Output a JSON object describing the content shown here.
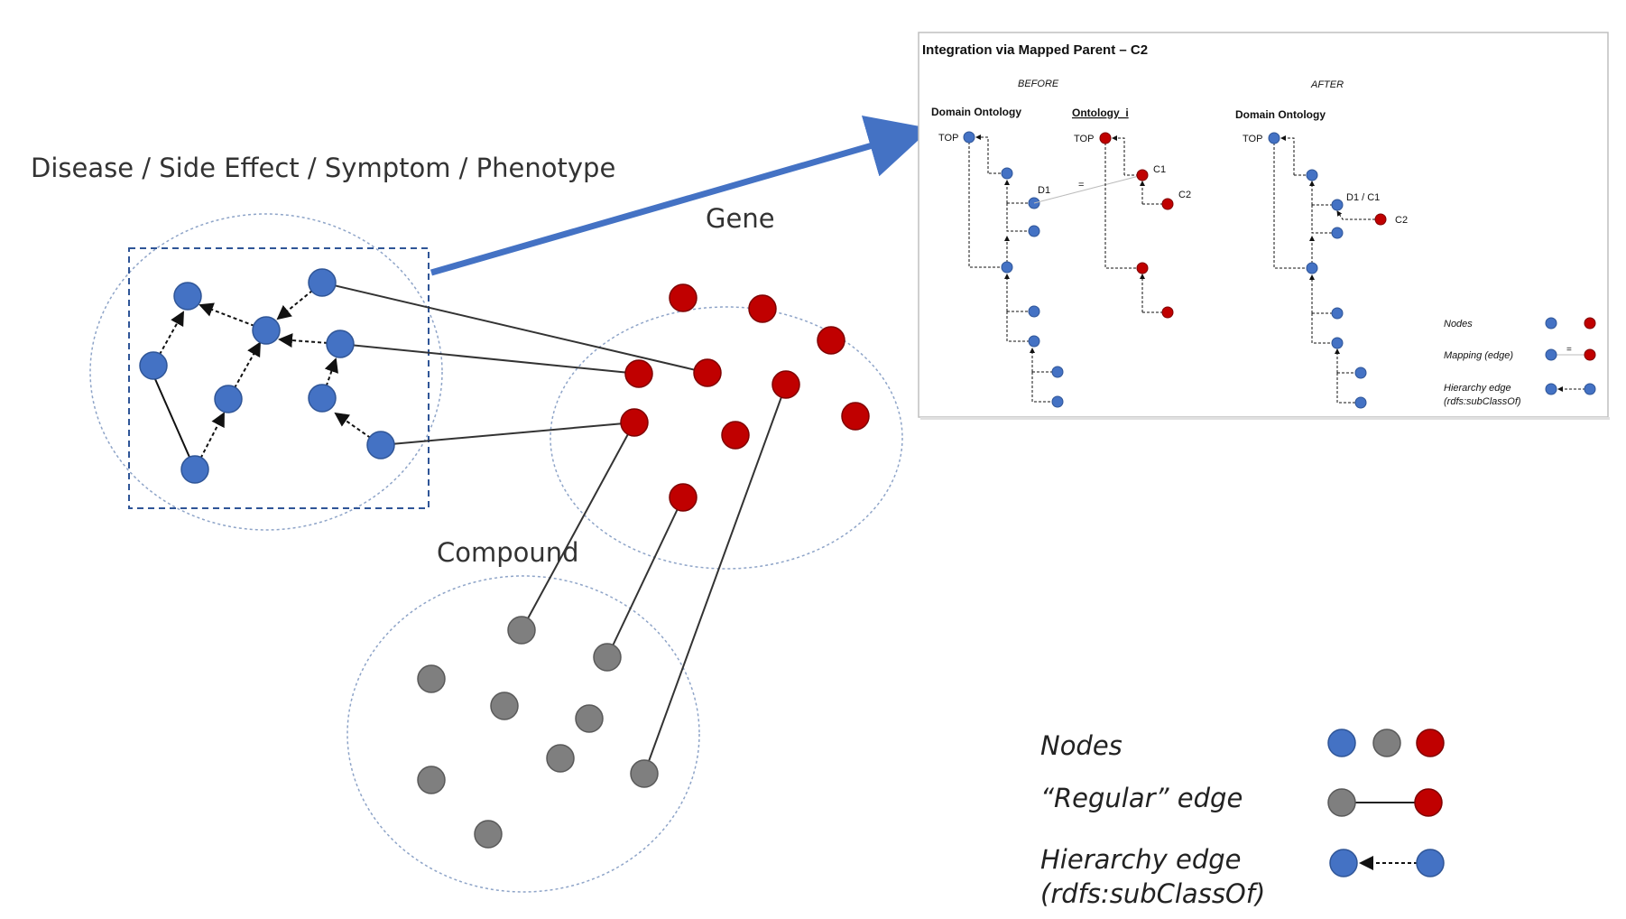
{
  "colors": {
    "blue_node": "#4472C4",
    "red_node": "#C00000",
    "grey_node": "#7F7F7F",
    "cluster_outline": "#8EA4C8",
    "selection_box": "#2F5597",
    "arrow": "#4472C4"
  },
  "clusters": {
    "disease_label": "Disease / Side Effect / Symptom / Phenotype",
    "gene_label": "Gene",
    "compound_label": "Compound"
  },
  "legend": {
    "nodes_label": "Nodes",
    "regular_edge_label": "“Regular” edge",
    "hierarchy_edge_label_line1": "Hierarchy edge",
    "hierarchy_edge_label_line2": "(rdfs:subClassOf)"
  },
  "inset": {
    "title": "Integration via Mapped Parent – C2",
    "before_label": "BEFORE",
    "after_label": "AFTER",
    "domain_ontology_label": "Domain Ontology",
    "ontology_i_label": "Ontology_i",
    "domain_ontology_after_label": "Domain Ontology",
    "top_label": "TOP",
    "d1_label": "D1",
    "c1_label": "C1",
    "c2_label": "C2",
    "equals_label": "=",
    "d1_c1_label": "D1 / C1",
    "legend": {
      "nodes_label": "Nodes",
      "mapping_label": "Mapping (edge)",
      "hierarchy_label_line1": "Hierarchy edge",
      "hierarchy_label_line2": "(rdfs:subClassOf)",
      "mapping_equals": "="
    }
  }
}
